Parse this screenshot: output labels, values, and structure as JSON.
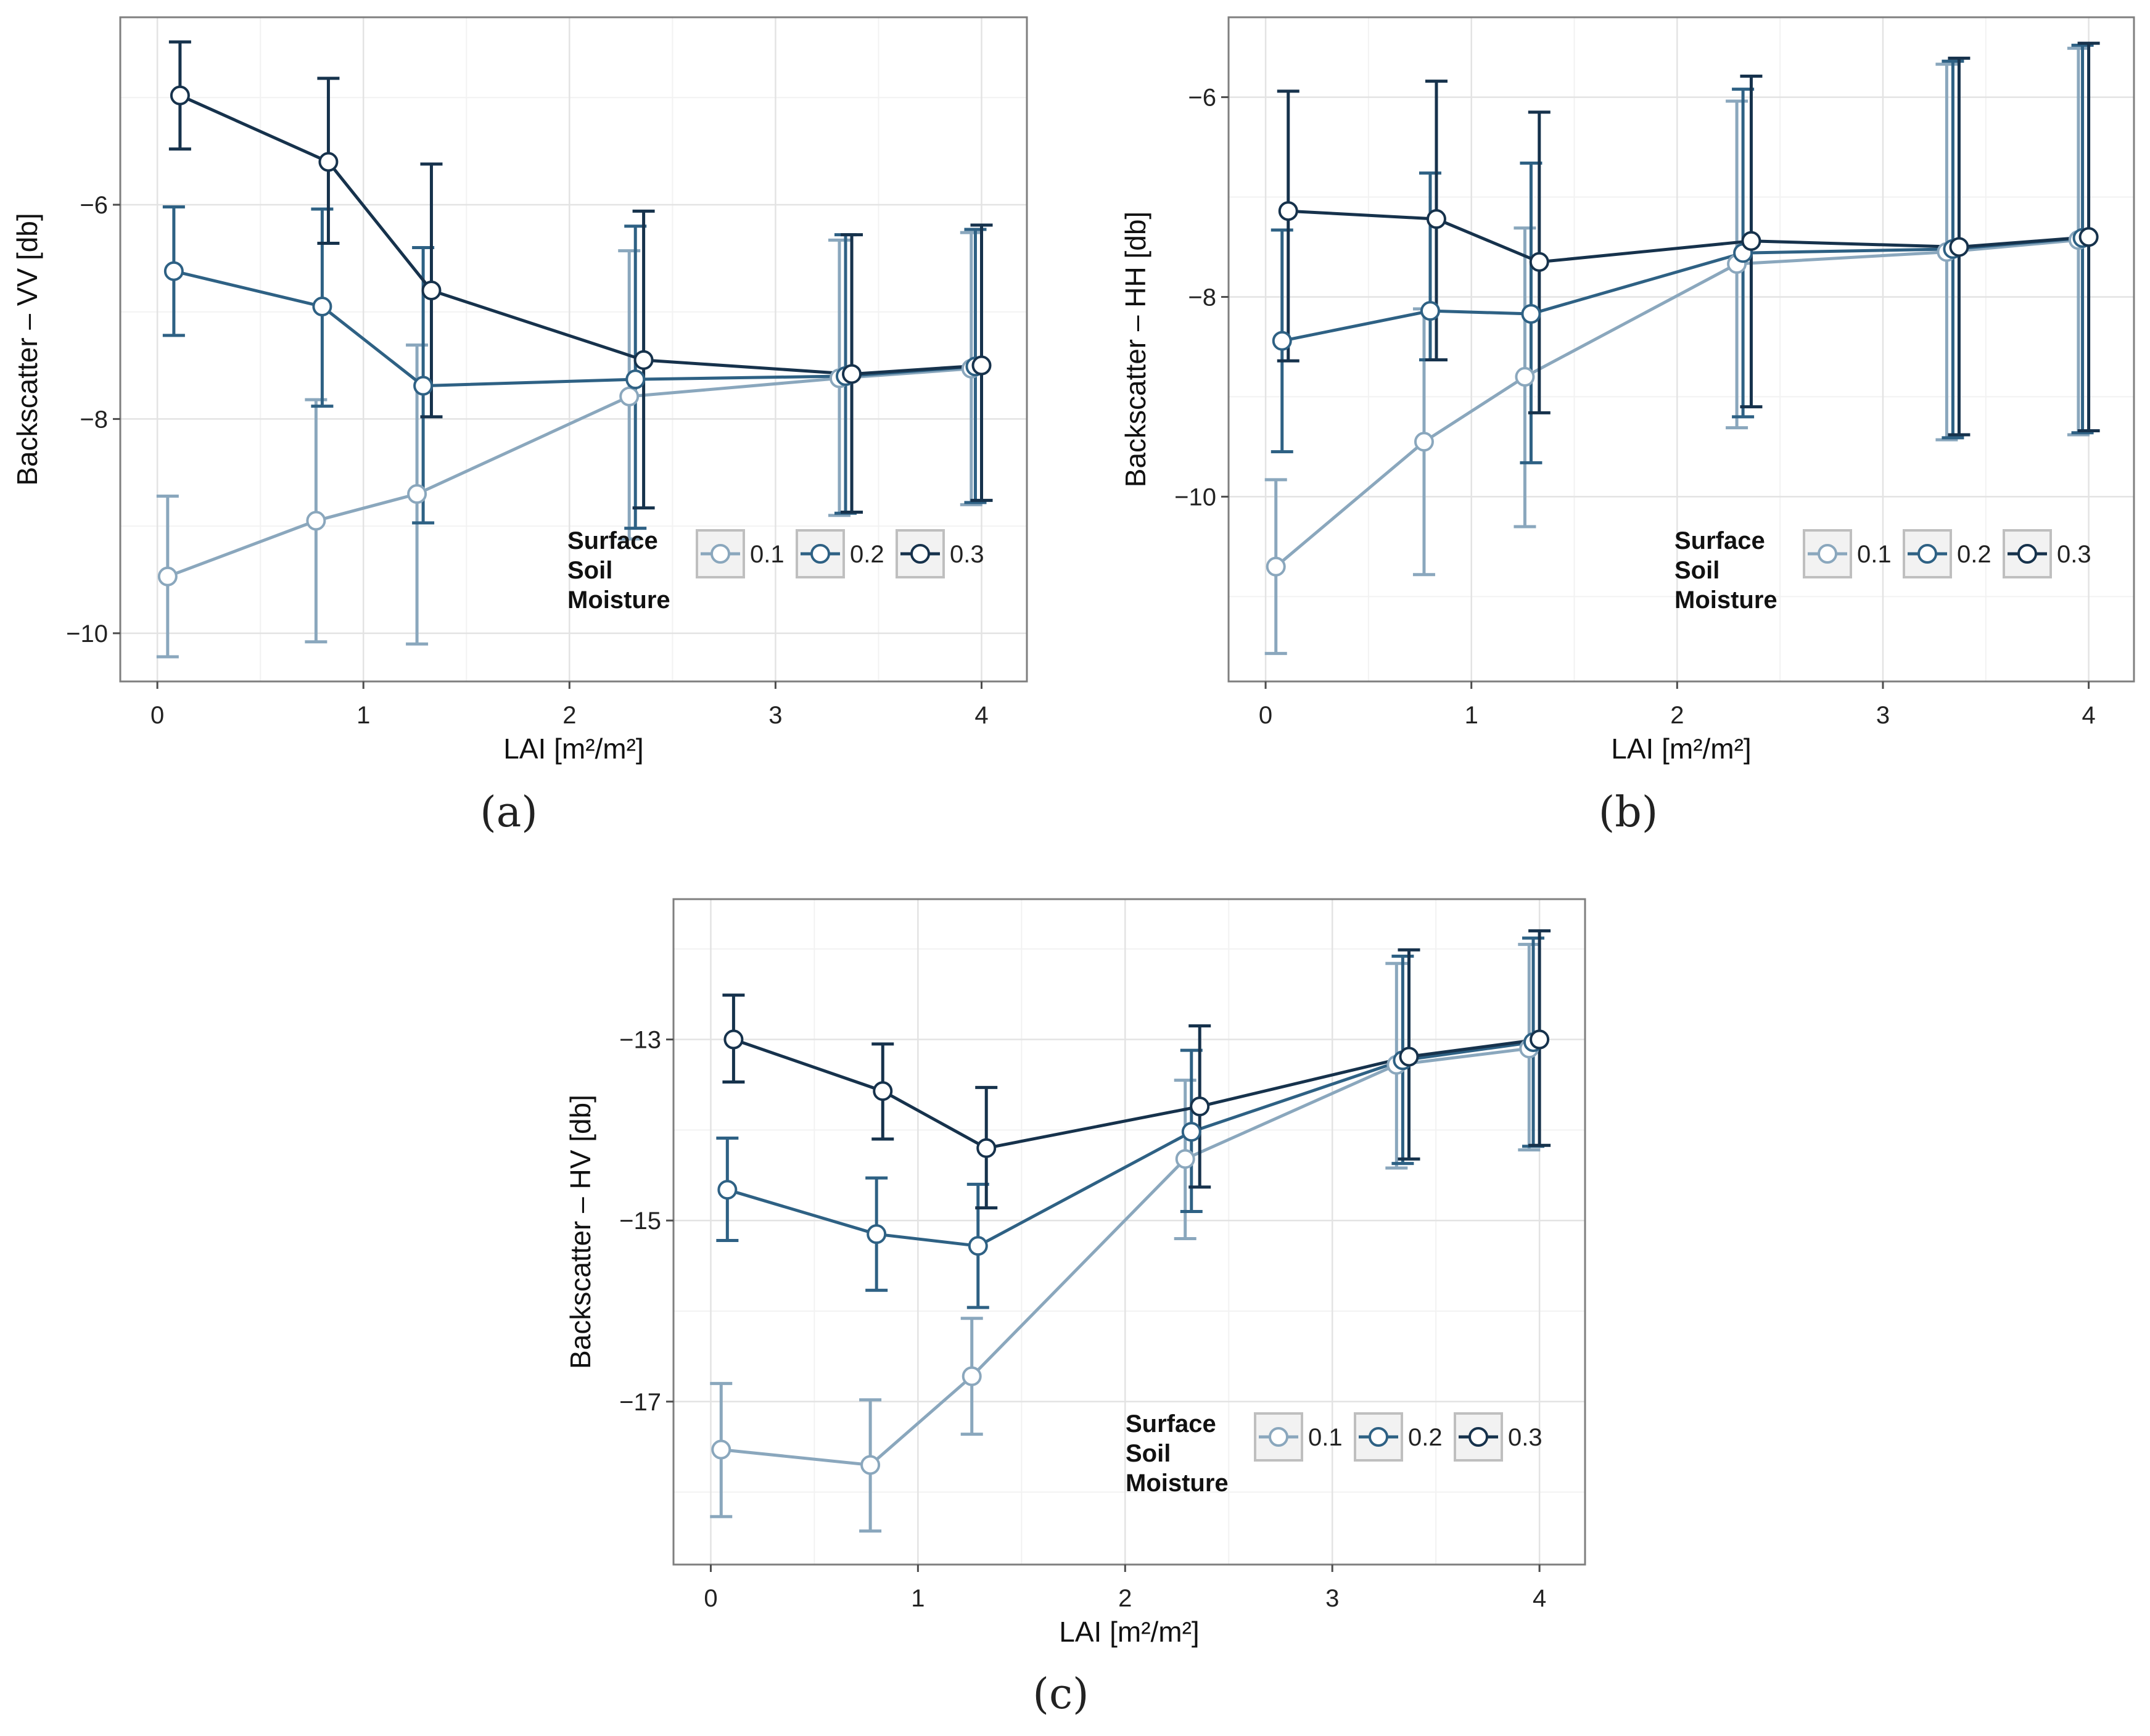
{
  "panels": [
    {
      "letter": "a"
    },
    {
      "letter": "b"
    },
    {
      "letter": "c"
    }
  ],
  "legend": {
    "title_lines": [
      "Surface",
      "Soil",
      "Moisture"
    ],
    "colors": [
      "#8aa7bd",
      "#2e6184",
      "#16324c"
    ]
  },
  "chart_data": [
    {
      "type": "line",
      "panel_label": "(a)",
      "xlabel": "LAI [m²/m²]",
      "ylabel": "Backscatter – VV [db]",
      "xlim": [
        -0.18,
        4.22
      ],
      "ylim": [
        -10.45,
        -4.25
      ],
      "xticks": [
        0,
        1,
        2,
        3,
        4
      ],
      "yticks": [
        -10,
        -8,
        -6
      ],
      "grid": true,
      "legend_placement": "bottom-right",
      "legend_title": "Surface Soil Moisture",
      "series": [
        {
          "name": "0.1",
          "x": [
            0.05,
            0.77,
            1.26,
            2.29,
            3.31,
            3.95
          ],
          "y": [
            -9.47,
            -8.95,
            -8.7,
            -7.79,
            -7.62,
            -7.53
          ],
          "err_lo": [
            -10.22,
            -10.08,
            -10.1,
            -9.12,
            -8.9,
            -8.8
          ],
          "err_hi": [
            -8.72,
            -7.82,
            -7.31,
            -6.43,
            -6.33,
            -6.26
          ]
        },
        {
          "name": "0.2",
          "x": [
            0.08,
            0.8,
            1.29,
            2.32,
            3.34,
            3.97
          ],
          "y": [
            -6.62,
            -6.95,
            -7.69,
            -7.63,
            -7.6,
            -7.51
          ],
          "err_lo": [
            -7.22,
            -7.88,
            -8.97,
            -9.02,
            -8.88,
            -8.78
          ],
          "err_hi": [
            -6.02,
            -6.04,
            -6.4,
            -6.2,
            -6.28,
            -6.23
          ]
        },
        {
          "name": "0.3",
          "x": [
            0.11,
            0.83,
            1.33,
            2.36,
            3.37,
            4.0
          ],
          "y": [
            -4.98,
            -5.6,
            -6.8,
            -7.45,
            -7.58,
            -7.5
          ],
          "err_lo": [
            -5.48,
            -6.36,
            -7.98,
            -8.83,
            -8.87,
            -8.76
          ],
          "err_hi": [
            -4.48,
            -4.82,
            -5.62,
            -6.06,
            -6.28,
            -6.19
          ]
        }
      ]
    },
    {
      "type": "line",
      "panel_label": "(b)",
      "xlabel": "LAI [m²/m²]",
      "ylabel": "Backscatter – HH [db]",
      "xlim": [
        -0.18,
        4.22
      ],
      "ylim": [
        -11.85,
        -5.2
      ],
      "xticks": [
        0,
        1,
        2,
        3,
        4
      ],
      "yticks": [
        -10,
        -8,
        -6
      ],
      "grid": true,
      "legend_placement": "bottom-right",
      "legend_title": "Surface Soil Moisture",
      "series": [
        {
          "name": "0.1",
          "x": [
            0.05,
            0.77,
            1.26,
            2.29,
            3.31,
            3.95
          ],
          "y": [
            -10.7,
            -9.45,
            -8.8,
            -7.67,
            -7.55,
            -7.43
          ],
          "err_lo": [
            -11.57,
            -10.78,
            -10.3,
            -9.31,
            -9.43,
            -9.38
          ],
          "err_hi": [
            -9.83,
            -8.12,
            -7.31,
            -6.04,
            -5.67,
            -5.51
          ]
        },
        {
          "name": "0.2",
          "x": [
            0.08,
            0.8,
            1.29,
            2.32,
            3.34,
            3.97
          ],
          "y": [
            -8.44,
            -8.14,
            -8.17,
            -7.56,
            -7.52,
            -7.41
          ],
          "err_lo": [
            -9.55,
            -8.63,
            -9.66,
            -9.2,
            -9.41,
            -9.36
          ],
          "err_hi": [
            -7.33,
            -6.76,
            -6.66,
            -5.92,
            -5.64,
            -5.48
          ]
        },
        {
          "name": "0.3",
          "x": [
            0.11,
            0.83,
            1.33,
            2.36,
            3.37,
            4.0
          ],
          "y": [
            -7.14,
            -7.22,
            -7.65,
            -7.44,
            -7.5,
            -7.4
          ],
          "err_lo": [
            -8.64,
            -8.63,
            -9.16,
            -9.1,
            -9.38,
            -9.34
          ],
          "err_hi": [
            -5.94,
            -5.84,
            -6.15,
            -5.79,
            -5.61,
            -5.46
          ]
        }
      ]
    },
    {
      "type": "line",
      "panel_label": "(c)",
      "xlabel": "LAI [m²/m²]",
      "ylabel": "Backscatter – HV [db]",
      "xlim": [
        -0.18,
        4.22
      ],
      "ylim": [
        -18.8,
        -11.45
      ],
      "xticks": [
        0,
        1,
        2,
        3,
        4
      ],
      "yticks": [
        -17,
        -15,
        -13
      ],
      "grid": true,
      "legend_placement": "bottom-right",
      "legend_title": "Surface Soil Moisture",
      "series": [
        {
          "name": "0.1",
          "x": [
            0.05,
            0.77,
            1.26,
            2.29,
            3.31,
            3.95
          ],
          "y": [
            -17.53,
            -17.7,
            -16.72,
            -14.32,
            -13.28,
            -13.1
          ],
          "err_lo": [
            -18.27,
            -18.43,
            -17.36,
            -15.2,
            -14.42,
            -14.22
          ],
          "err_hi": [
            -16.8,
            -16.98,
            -16.08,
            -13.45,
            -12.16,
            -11.95
          ]
        },
        {
          "name": "0.2",
          "x": [
            0.08,
            0.8,
            1.29,
            2.32,
            3.34,
            3.97
          ],
          "y": [
            -14.66,
            -15.15,
            -15.28,
            -14.02,
            -13.23,
            -13.03
          ],
          "err_lo": [
            -15.22,
            -15.77,
            -15.96,
            -14.9,
            -14.37,
            -14.18
          ],
          "err_hi": [
            -14.09,
            -14.53,
            -14.6,
            -13.12,
            -12.08,
            -11.88
          ]
        },
        {
          "name": "0.3",
          "x": [
            0.11,
            0.83,
            1.33,
            2.36,
            3.37,
            4.0
          ],
          "y": [
            -13.0,
            -13.57,
            -14.2,
            -13.74,
            -13.19,
            -13.0
          ],
          "err_lo": [
            -13.47,
            -14.1,
            -14.86,
            -14.63,
            -14.32,
            -14.17
          ],
          "err_hi": [
            -12.51,
            -13.05,
            -13.53,
            -12.85,
            -12.01,
            -11.8
          ]
        }
      ]
    }
  ]
}
